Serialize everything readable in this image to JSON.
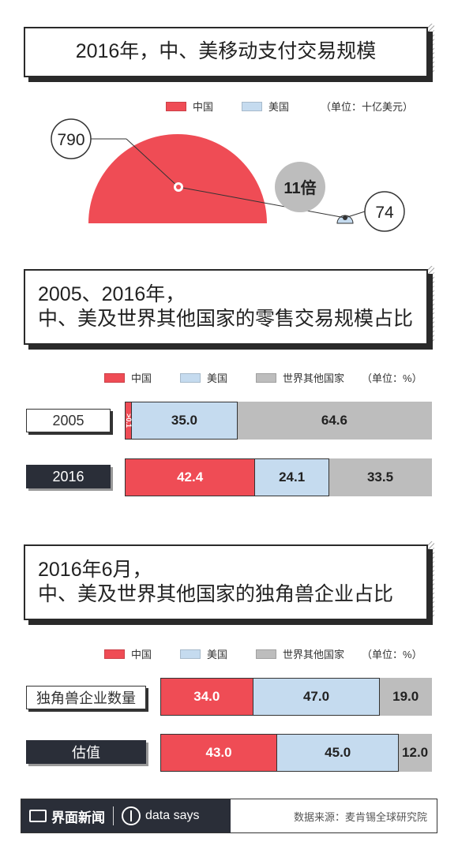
{
  "section1": {
    "title": "2016年，中、美移动支付交易规模",
    "legend": {
      "china": "中国",
      "usa": "美国",
      "unit": "（单位：十亿美元）"
    },
    "ratio_label": "11倍"
  },
  "section2": {
    "title_line1": "2005、2016年，",
    "title_line2": "中、美及世界其他国家的零售交易规模占比",
    "legend": {
      "china": "中国",
      "usa": "美国",
      "other": "世界其他国家",
      "unit": "（单位：%）"
    },
    "tiny_label": ">0.1"
  },
  "section3": {
    "title_line1": "2016年6月，",
    "title_line2": "中、美及世界其他国家的独角兽企业占比",
    "legend": {
      "china": "中国",
      "usa": "美国",
      "other": "世界其他国家",
      "unit": "（单位：%）"
    }
  },
  "footer": {
    "brand": "界面新闻",
    "brand2": "data says",
    "source": "数据来源：麦肯锡全球研究院"
  },
  "colors": {
    "china": "#ef4c55",
    "usa": "#c5dbef",
    "other": "#bdbdbd",
    "dark": "#2a2e38"
  },
  "chart_data": [
    {
      "type": "pie",
      "title": "2016年，中、美移动支付交易规模",
      "unit": "十亿美元",
      "categories": [
        "中国",
        "美国"
      ],
      "values": [
        790,
        74
      ],
      "annotation": "11倍"
    },
    {
      "type": "bar",
      "title": "2005、2016年，中、美及世界其他国家的零售交易规模占比",
      "unit": "%",
      "categories": [
        "2005",
        "2016"
      ],
      "series": [
        {
          "name": "中国",
          "values": [
            0.1,
            42.4
          ],
          "labels": [
            ">0.1",
            "42.4"
          ]
        },
        {
          "name": "美国",
          "values": [
            35.0,
            24.1
          ],
          "labels": [
            "35.0",
            "24.1"
          ]
        },
        {
          "name": "世界其他国家",
          "values": [
            64.6,
            33.5
          ],
          "labels": [
            "64.6",
            "33.5"
          ]
        }
      ]
    },
    {
      "type": "bar",
      "title": "2016年6月，中、美及世界其他国家的独角兽企业占比",
      "unit": "%",
      "categories": [
        "独角兽企业数量",
        "估值"
      ],
      "series": [
        {
          "name": "中国",
          "values": [
            34.0,
            43.0
          ],
          "labels": [
            "34.0",
            "43.0"
          ]
        },
        {
          "name": "美国",
          "values": [
            47.0,
            45.0
          ],
          "labels": [
            "47.0",
            "45.0"
          ]
        },
        {
          "name": "世界其他国家",
          "values": [
            19.0,
            12.0
          ],
          "labels": [
            "19.0",
            "12.0"
          ]
        }
      ]
    }
  ]
}
